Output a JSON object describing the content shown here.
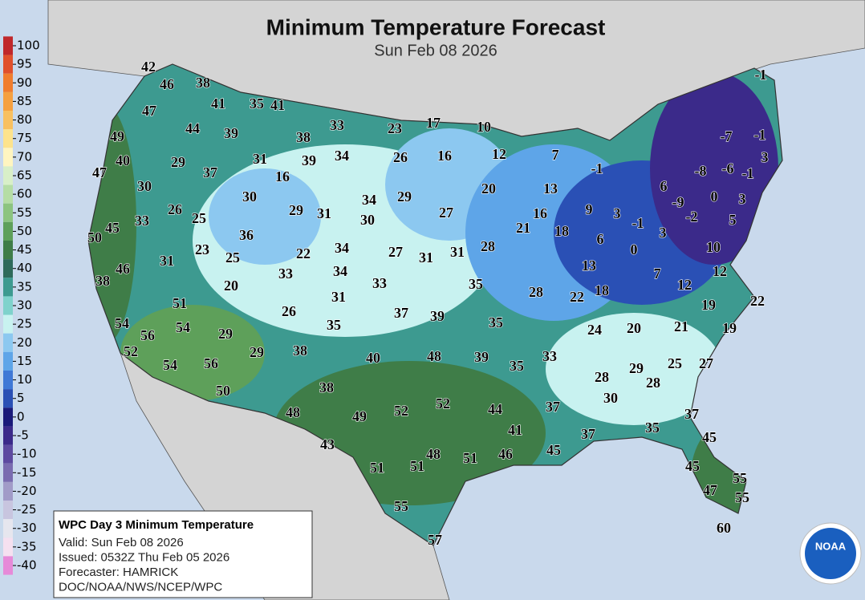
{
  "title": "Minimum Temperature Forecast",
  "subtitle": "Sun Feb 08 2026",
  "legend": {
    "ticks": [
      100,
      95,
      90,
      85,
      80,
      75,
      70,
      65,
      60,
      55,
      50,
      45,
      40,
      35,
      30,
      25,
      20,
      15,
      10,
      5,
      0,
      -5,
      -10,
      -15,
      -20,
      -25,
      -30,
      -35,
      -40
    ],
    "colors": [
      "#c0282b",
      "#e0502c",
      "#f07d2e",
      "#f5a040",
      "#f8c060",
      "#fde38c",
      "#fff5c0",
      "#d8efc8",
      "#b5dda5",
      "#8cc480",
      "#5ea05a",
      "#3f7d48",
      "#2e6a5a",
      "#3d9a90",
      "#7fd2cc",
      "#c8f2f0",
      "#8cc8f0",
      "#5ea5e8",
      "#3f78d6",
      "#2a50b5",
      "#1a1a7a",
      "#3b2a8a",
      "#5d4aa0",
      "#7a6cb0",
      "#a19bc8",
      "#c8c5df",
      "#e6e6ee",
      "#f5e0f0",
      "#e68ad8"
    ]
  },
  "labels": [
    42,
    46,
    38,
    47,
    41,
    35,
    41,
    44,
    39,
    33,
    23,
    17,
    10,
    49,
    38,
    40,
    29,
    31,
    39,
    34,
    26,
    16,
    12,
    7,
    37,
    16,
    47,
    30,
    30,
    34,
    29,
    20,
    13,
    -1,
    26,
    25,
    29,
    31,
    30,
    27,
    16,
    21,
    18,
    9,
    3,
    50,
    45,
    33,
    36,
    -1,
    6,
    3,
    23,
    25,
    22,
    34,
    27,
    31,
    31,
    28,
    31,
    46,
    33,
    34,
    13,
    0,
    7,
    10,
    12,
    38,
    20,
    33,
    35,
    28,
    22,
    18,
    12,
    51,
    31,
    26,
    37,
    39,
    35,
    35,
    19,
    22,
    54,
    56,
    54,
    29,
    24,
    20,
    21,
    19,
    52,
    29,
    38,
    40,
    48,
    39,
    33,
    35,
    54,
    56,
    25,
    27,
    29,
    28,
    28,
    50,
    38,
    30,
    52,
    52,
    37,
    44,
    48,
    49,
    37,
    41,
    37,
    35,
    45,
    43,
    48,
    51,
    46,
    45,
    51,
    51,
    45,
    55,
    47,
    55,
    55,
    60,
    57,
    -1,
    -7,
    -1,
    3,
    -8,
    -6,
    -1,
    6,
    -9,
    0,
    3,
    -2,
    5
  ],
  "info_box": {
    "heading": "WPC Day 3 Minimum Temperature",
    "lines": [
      "Valid: Sun Feb 08 2026",
      "Issued: 0532Z Thu Feb 05 2026",
      "Forecaster: HAMRICK",
      "DOC/NOAA/NWS/NCEP/WPC"
    ]
  },
  "logo": "NOAA"
}
